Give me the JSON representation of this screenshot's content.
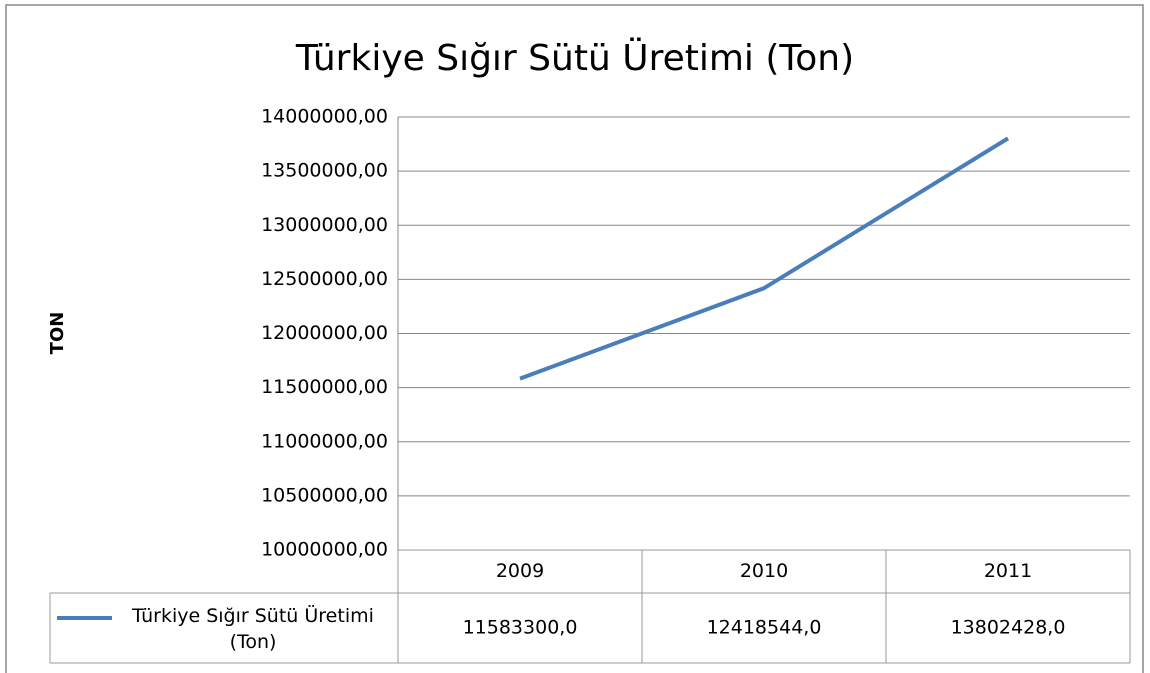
{
  "chart_data": {
    "type": "line",
    "title": "Türkiye Sığır Sütü Üretimi (Ton)",
    "y_label": "TON",
    "categories": [
      "2009",
      "2010",
      "2011"
    ],
    "series": [
      {
        "name": "Türkiye Sığır Sütü Üretimi (Ton)",
        "color": "#4a7ebb",
        "values": [
          11583300,
          12418544,
          13802428
        ],
        "value_labels": [
          "11583300,0",
          "12418544,0",
          "13802428,0"
        ]
      }
    ],
    "ylim": [
      10000000,
      14000000
    ],
    "yticks": [
      {
        "value": 10000000,
        "label": "10000000,00"
      },
      {
        "value": 10500000,
        "label": "10500000,00"
      },
      {
        "value": 11000000,
        "label": "11000000,00"
      },
      {
        "value": 11500000,
        "label": "11500000,00"
      },
      {
        "value": 12000000,
        "label": "12000000,00"
      },
      {
        "value": 12500000,
        "label": "12500000,00"
      },
      {
        "value": 13000000,
        "label": "13000000,00"
      },
      {
        "value": 13500000,
        "label": "13500000,00"
      },
      {
        "value": 14000000,
        "label": "14000000,00"
      }
    ],
    "grid": true,
    "data_table": true
  }
}
